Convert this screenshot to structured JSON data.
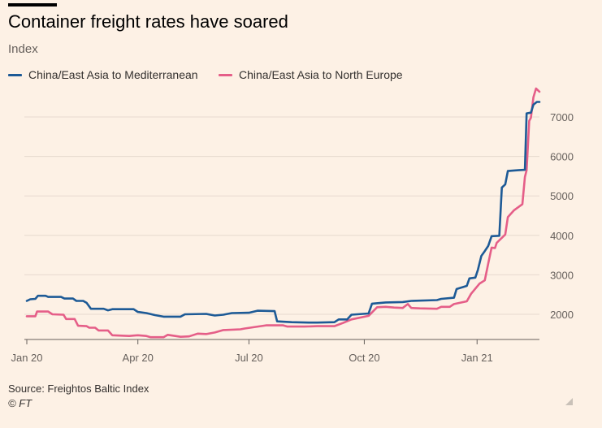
{
  "header": {
    "title": "Container freight rates have soared",
    "subtitle": "Index"
  },
  "footer": {
    "source": "Source: Freightos Baltic Index",
    "copyright": "© FT"
  },
  "chart_data": {
    "type": "line",
    "title": "Container freight rates have soared",
    "ylabel": "Index",
    "xlabel": "",
    "ylim": [
      1400,
      7900
    ],
    "xlim": [
      0,
      60
    ],
    "x_unit": "weeks since Jan 2020",
    "yticks": [
      2000,
      3000,
      4000,
      5000,
      6000,
      7000
    ],
    "xticks": [
      {
        "label": "Jan 20",
        "x": 0
      },
      {
        "label": "Apr 20",
        "x": 13
      },
      {
        "label": "Jul 20",
        "x": 26
      },
      {
        "label": "Oct 20",
        "x": 39.5
      },
      {
        "label": "Jan 21",
        "x": 52.7
      }
    ],
    "legend_position": "top-left",
    "grid": true,
    "series": [
      {
        "name": "China/East Asia to Mediterranean",
        "color": "#1d5a96",
        "points": [
          [
            0,
            2340
          ],
          [
            0.4,
            2380
          ],
          [
            1,
            2390
          ],
          [
            1.3,
            2470
          ],
          [
            2.2,
            2470
          ],
          [
            2.5,
            2440
          ],
          [
            4,
            2440
          ],
          [
            4.4,
            2400
          ],
          [
            5.4,
            2400
          ],
          [
            5.8,
            2340
          ],
          [
            6.6,
            2340
          ],
          [
            7,
            2290
          ],
          [
            7.5,
            2140
          ],
          [
            9,
            2140
          ],
          [
            9.5,
            2100
          ],
          [
            10,
            2130
          ],
          [
            12.5,
            2130
          ],
          [
            13,
            2060
          ],
          [
            14,
            2030
          ],
          [
            15,
            1980
          ],
          [
            16,
            1940
          ],
          [
            18,
            1940
          ],
          [
            18.5,
            2000
          ],
          [
            21,
            2010
          ],
          [
            22,
            1970
          ],
          [
            23,
            1990
          ],
          [
            24,
            2030
          ],
          [
            26,
            2040
          ],
          [
            27,
            2090
          ],
          [
            29,
            2080
          ],
          [
            29.3,
            1820
          ],
          [
            31,
            1800
          ],
          [
            33,
            1790
          ],
          [
            34,
            1790
          ],
          [
            36,
            1800
          ],
          [
            36.5,
            1870
          ],
          [
            37.5,
            1870
          ],
          [
            38,
            1990
          ],
          [
            40,
            2020
          ],
          [
            40.4,
            2270
          ],
          [
            42,
            2300
          ],
          [
            44,
            2310
          ],
          [
            45,
            2340
          ],
          [
            48,
            2360
          ],
          [
            48.5,
            2390
          ],
          [
            50,
            2420
          ],
          [
            50.3,
            2640
          ],
          [
            51.5,
            2720
          ],
          [
            51.8,
            2910
          ],
          [
            52.5,
            2930
          ],
          [
            52.8,
            3130
          ],
          [
            53.2,
            3480
          ],
          [
            53.6,
            3600
          ],
          [
            54,
            3730
          ],
          [
            54.4,
            3980
          ],
          [
            55.3,
            3990
          ],
          [
            55.6,
            5210
          ],
          [
            56,
            5290
          ],
          [
            56.3,
            5630
          ],
          [
            57.5,
            5650
          ],
          [
            58.3,
            5660
          ],
          [
            58.5,
            7090
          ],
          [
            59,
            7110
          ],
          [
            59.3,
            7310
          ],
          [
            59.7,
            7380
          ],
          [
            60,
            7380
          ]
        ]
      },
      {
        "name": "China/East Asia to North Europe",
        "color": "#e55e88",
        "points": [
          [
            0,
            1950
          ],
          [
            1,
            1950
          ],
          [
            1.2,
            2070
          ],
          [
            2.5,
            2070
          ],
          [
            3,
            2000
          ],
          [
            4.3,
            1990
          ],
          [
            4.6,
            1880
          ],
          [
            5.6,
            1880
          ],
          [
            6,
            1710
          ],
          [
            7,
            1700
          ],
          [
            7.3,
            1660
          ],
          [
            8,
            1660
          ],
          [
            8.4,
            1590
          ],
          [
            9.5,
            1590
          ],
          [
            10,
            1470
          ],
          [
            12,
            1450
          ],
          [
            12.5,
            1460
          ],
          [
            13,
            1470
          ],
          [
            14,
            1450
          ],
          [
            14.5,
            1420
          ],
          [
            16,
            1420
          ],
          [
            16.5,
            1480
          ],
          [
            18,
            1430
          ],
          [
            19,
            1440
          ],
          [
            20,
            1510
          ],
          [
            21,
            1500
          ],
          [
            22,
            1540
          ],
          [
            23,
            1600
          ],
          [
            25,
            1620
          ],
          [
            25.5,
            1640
          ],
          [
            28,
            1720
          ],
          [
            30,
            1720
          ],
          [
            30.5,
            1690
          ],
          [
            32,
            1690
          ],
          [
            32.5,
            1690
          ],
          [
            34,
            1700
          ],
          [
            36,
            1700
          ],
          [
            37,
            1780
          ],
          [
            38,
            1870
          ],
          [
            40,
            1960
          ],
          [
            41,
            2180
          ],
          [
            42,
            2190
          ],
          [
            43,
            2170
          ],
          [
            44,
            2160
          ],
          [
            44.6,
            2260
          ],
          [
            45,
            2160
          ],
          [
            46,
            2150
          ],
          [
            48,
            2140
          ],
          [
            48.5,
            2190
          ],
          [
            49.5,
            2190
          ],
          [
            50,
            2260
          ],
          [
            51.5,
            2330
          ],
          [
            52,
            2520
          ],
          [
            53,
            2780
          ],
          [
            53.6,
            2860
          ],
          [
            54,
            3280
          ],
          [
            54.4,
            3690
          ],
          [
            54.8,
            3680
          ],
          [
            55,
            3810
          ],
          [
            56,
            4020
          ],
          [
            56.3,
            4460
          ],
          [
            57,
            4630
          ],
          [
            58,
            4790
          ],
          [
            58.3,
            5480
          ],
          [
            58.5,
            5650
          ],
          [
            58.8,
            6900
          ],
          [
            59,
            6980
          ],
          [
            59.3,
            7500
          ],
          [
            59.6,
            7720
          ],
          [
            60,
            7640
          ]
        ]
      }
    ]
  }
}
